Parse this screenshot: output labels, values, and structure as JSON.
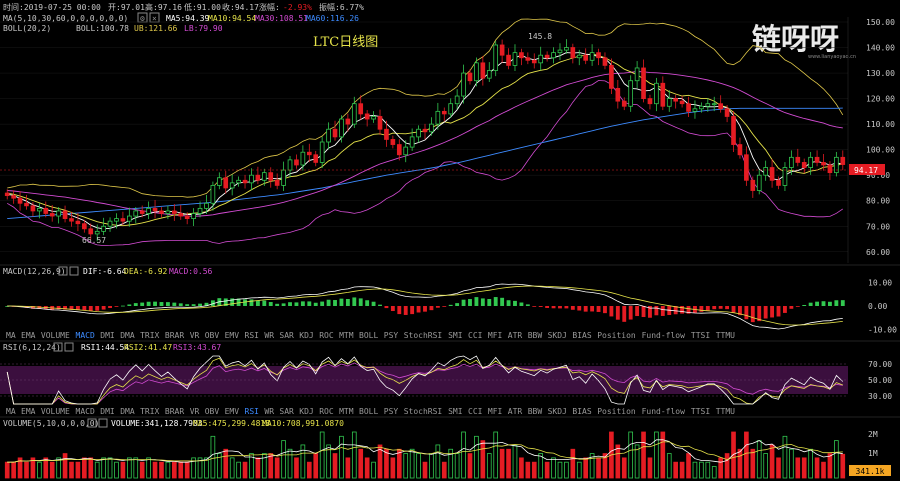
{
  "header": {
    "time_label": "时间:2019-07-25 00:00",
    "open_label": "开:97.01",
    "high_label": "高:97.16",
    "low_label": "低:91.00",
    "close_label": "收:94.17",
    "change_label": "涨幅:",
    "change_value": "-2.93%",
    "amplitude_label": "振幅:6.77%"
  },
  "ma_line": {
    "label": "MA(5,10,30,60,0,0,0,0,0,0)",
    "ma5": "MA5:94.39",
    "ma10": "MA10:94.54",
    "ma30": "MA30:108.51",
    "ma60": "MA60:116.26"
  },
  "boll_line": {
    "label": "BOLL(20,2)",
    "boll": "BOLL:100.78",
    "ub": "UB:121.66",
    "lb": "LB:79.90"
  },
  "macd_line": {
    "label": "MACD(12,26,9)",
    "dif": "DIF:-6.64",
    "dea": "DEA:-6.92",
    "macd": "MACD:0.56"
  },
  "rsi_line": {
    "label": "RSI(6,12,24)",
    "rsi1": "RSI1:44.54",
    "rsi2": "RSI2:41.47",
    "rsi3": "RSI3:43.67"
  },
  "volume_line": {
    "label": "VOLUME(5,10,0,0,0,0)",
    "volume": "VOLUME:341,128.7903",
    "ma5": "MA5:475,299.4818",
    "ma10": "MA10:708,991.0870"
  },
  "chart_title": "LTC日线图",
  "watermark": {
    "logo_text": "链呀呀",
    "url_text": "www.lianyaoyao.cn"
  },
  "indicator_tabs": [
    "MA",
    "EMA",
    "VOLUME",
    "MACD",
    "DMI",
    "DMA",
    "TRIX",
    "BRAR",
    "VR",
    "OBV",
    "EMV",
    "RSI",
    "WR",
    "SAR",
    "KDJ",
    "ROC",
    "MTM",
    "BOLL",
    "PSY",
    "StochRSI",
    "SMI",
    "CCI",
    "MFI",
    "ATR",
    "BBW",
    "SKDJ",
    "BIAS",
    "Position",
    "Fund-flow",
    "TTSI",
    "TTMU"
  ],
  "tabs_row1_active": "MACD",
  "tabs_row2_active": "RSI",
  "colors": {
    "up": "#32c850",
    "down": "#e51c23",
    "ma5": "#ffffff",
    "ma10": "#e6e34a",
    "ma30": "#d24bd2",
    "ma60": "#3d8bff",
    "boll_ub": "#e0c84a",
    "current_price_bg": "#e51c23",
    "volume_price_bg": "#f5a623"
  },
  "chart_data": [
    {
      "type": "candlestick",
      "title": "LTC日线图",
      "y_ticks": [
        60,
        70,
        80,
        90,
        100,
        110,
        120,
        130,
        140,
        150
      ],
      "ylim": [
        56,
        150
      ],
      "annotations": [
        {
          "label": "145.8",
          "value": 145.8
        },
        {
          "label": "66.57",
          "value": 66.57
        }
      ],
      "current_price": "94.17",
      "close": [
        82,
        81,
        79,
        78,
        76,
        77,
        75,
        74,
        76,
        73,
        72,
        71,
        69,
        67,
        68,
        70,
        72,
        73,
        72,
        74,
        76,
        75,
        77,
        76,
        75,
        76,
        75,
        74,
        73,
        75,
        77,
        79,
        86,
        89,
        85,
        87,
        88,
        87,
        90,
        88,
        91,
        88,
        86,
        92,
        96,
        94,
        99,
        98,
        95,
        103,
        108,
        105,
        112,
        110,
        118,
        114,
        112,
        113,
        108,
        104,
        102,
        98,
        101,
        105,
        108,
        107,
        110,
        115,
        114,
        118,
        121,
        130,
        127,
        134,
        128,
        131,
        141,
        137,
        133,
        138,
        136,
        135,
        134,
        137,
        136,
        138,
        139,
        140,
        136,
        137,
        135,
        138,
        136,
        133,
        124,
        119,
        117,
        127,
        132,
        120,
        118,
        126,
        117,
        120,
        119,
        118,
        115,
        116,
        117,
        118,
        118,
        116,
        113,
        102,
        98,
        88,
        84,
        90,
        93,
        88,
        86,
        93,
        97,
        95,
        93,
        97,
        95,
        94,
        91,
        97,
        94.17
      ],
      "ma5": [
        82.6,
        82.0,
        80.9,
        79.8,
        78.4,
        77.6,
        76.6,
        75.9,
        75.8,
        75.2,
        74.2,
        73.2,
        72.2,
        70.4,
        69.4,
        69.0,
        69.2,
        70.0,
        71.0,
        72.2,
        73.4,
        74.0,
        74.8,
        75.6,
        75.8,
        75.8,
        75.8,
        75.2,
        74.6,
        74.6,
        74.8,
        75.6,
        78.0,
        81.2,
        83.2,
        85.2,
        87.0,
        87.2,
        87.4,
        88.0,
        88.8,
        88.8,
        88.6,
        89.0,
        90.6,
        91.2,
        93.4,
        95.8,
        96.4,
        97.8,
        100.6,
        101.8,
        104.6,
        107.6,
        110.6,
        111.8,
        113.2,
        113.4,
        113.0,
        110.2,
        107.8,
        105.0,
        102.6,
        102.0,
        102.8,
        103.8,
        106.2,
        109.0,
        110.8,
        112.8,
        115.6,
        119.6,
        122.0,
        126.0,
        128.0,
        130.0,
        132.2,
        134.2,
        134.0,
        136.0,
        137.0,
        135.8,
        135.2,
        136.0,
        135.6,
        136.0,
        136.8,
        138.0,
        137.8,
        138.0,
        137.4,
        137.2,
        136.4,
        135.8,
        133.2,
        130.0,
        125.8,
        124.0,
        123.8,
        123.0,
        123.2,
        124.6,
        122.6,
        120.2,
        120.0,
        120.0,
        117.8,
        117.6,
        117.0,
        116.8,
        116.8,
        117.0,
        116.4,
        113.4,
        109.4,
        103.4,
        97.0,
        92.4,
        90.6,
        88.6,
        88.2,
        90.0,
        91.4,
        91.8,
        92.8,
        95.0,
        95.4,
        94.8,
        94.0,
        94.8,
        94.39
      ],
      "ma10": [
        83.0,
        82.5,
        81.8,
        81.0,
        80.1,
        79.2,
        78.3,
        77.5,
        76.9,
        76.3,
        75.4,
        74.4,
        73.6,
        72.7,
        71.8,
        71.2,
        70.7,
        70.4,
        70.2,
        70.5,
        70.8,
        71.3,
        71.9,
        72.6,
        73.2,
        73.8,
        74.4,
        74.6,
        74.8,
        75.1,
        75.3,
        75.7,
        76.6,
        78.0,
        79.0,
        80.4,
        81.6,
        82.8,
        84.3,
        85.6,
        86.8,
        87.6,
        88.0,
        88.6,
        89.4,
        89.7,
        90.5,
        91.4,
        92.0,
        93.4,
        95.6,
        96.6,
        99.0,
        101.1,
        103.0,
        103.6,
        105.0,
        106.0,
        106.2,
        105.6,
        106.5,
        106.3,
        106.2,
        106.6,
        107.0,
        107.3,
        108.6,
        109.8,
        110.9,
        110.4,
        111.5,
        112.5,
        114.1,
        116.4,
        117.7,
        119.8,
        121.9,
        123.9,
        124.9,
        126.4,
        128.3,
        129.8,
        130.5,
        131.1,
        131.5,
        133.1,
        134.3,
        135.1,
        135.9,
        136.6,
        137.0,
        137.6,
        136.8,
        136.0,
        134.7,
        133.3,
        131.5,
        130.5,
        129.3,
        127.8,
        126.0,
        125.0,
        124.2,
        122.7,
        121.8,
        121.0,
        121.3,
        120.6,
        120.0,
        120.0,
        119.0,
        117.3,
        116.6,
        114.6,
        112.5,
        109.6,
        106.1,
        102.9,
        99.9,
        96.1,
        92.7,
        91.2,
        91.9,
        91.1,
        90.7,
        91.6,
        92.0,
        93.1,
        93.4,
        93.8,
        94.54
      ],
      "ma30": [
        84.0,
        83.8,
        83.5,
        83.2,
        82.9,
        82.6,
        82.3,
        82.0,
        81.7,
        81.4,
        81.0,
        80.6,
        80.2,
        79.8,
        79.3,
        78.9,
        78.4,
        77.9,
        77.4,
        76.9,
        76.5,
        76.1,
        75.7,
        75.3,
        75.0,
        74.7,
        74.4,
        74.2,
        74.0,
        73.9,
        74.0,
        74.2,
        74.5,
        75.0,
        75.4,
        75.8,
        76.2,
        76.6,
        77.0,
        77.4,
        77.8,
        78.3,
        78.8,
        79.4,
        80.1,
        80.8,
        81.6,
        82.4,
        83.2,
        84.1,
        85.1,
        86.1,
        87.2,
        88.4,
        89.6,
        90.9,
        92.1,
        93.3,
        94.4,
        95.2,
        96.0,
        96.8,
        97.5,
        98.3,
        99.1,
        99.9,
        100.8,
        101.8,
        102.8,
        103.9,
        105.0,
        106.3,
        107.6,
        109.0,
        110.2,
        111.4,
        112.9,
        114.2,
        115.4,
        116.7,
        117.9,
        119.0,
        120.1,
        121.2,
        122.3,
        123.4,
        124.4,
        125.4,
        126.1,
        126.8,
        127.5,
        128.3,
        128.9,
        129.4,
        129.7,
        129.9,
        130.0,
        130.3,
        130.6,
        130.5,
        130.2,
        130.1,
        129.9,
        129.7,
        129.4,
        129.1,
        128.7,
        128.3,
        127.8,
        127.3,
        126.7,
        126.0,
        125.2,
        124.3,
        123.2,
        121.9,
        120.6,
        119.3,
        118.1,
        116.9,
        115.6,
        114.5,
        113.7,
        112.9,
        112.2,
        111.6,
        111.0,
        110.4,
        109.5,
        108.9,
        108.51
      ],
      "ma60": [
        73.0,
        73.2,
        73.4,
        73.6,
        73.8,
        74.0,
        74.2,
        74.4,
        74.6,
        74.8,
        75.0,
        75.2,
        75.4,
        75.6,
        75.8,
        76.0,
        76.2,
        76.4,
        76.6,
        76.8,
        77.0,
        77.2,
        77.4,
        77.6,
        77.8,
        78.0,
        78.2,
        78.4,
        78.6,
        78.8,
        79.0,
        79.2,
        79.4,
        79.6,
        79.9,
        80.2,
        80.5,
        80.8,
        81.1,
        81.4,
        81.7,
        82.0,
        82.3,
        82.6,
        83.0,
        83.4,
        83.8,
        84.2,
        84.6,
        85.0,
        85.5,
        86.0,
        86.5,
        87.0,
        87.5,
        88.0,
        88.5,
        89.0,
        89.5,
        90.0,
        90.4,
        90.8,
        91.2,
        91.6,
        92.0,
        92.4,
        92.8,
        93.3,
        93.8,
        94.3,
        94.8,
        95.4,
        96.0,
        96.6,
        97.2,
        97.8,
        98.4,
        99.0,
        99.6,
        100.2,
        100.8,
        101.4,
        102.0,
        102.6,
        103.2,
        103.8,
        104.4,
        105.0,
        105.6,
        106.2,
        106.8,
        107.4,
        108.0,
        108.6,
        109.2,
        109.7,
        110.2,
        110.7,
        111.2,
        111.7,
        112.1,
        112.5,
        112.9,
        113.3,
        113.7,
        114.1,
        114.5,
        114.8,
        115.1,
        115.4,
        115.6,
        115.8,
        116.0,
        116.1,
        116.2,
        116.2,
        116.2,
        116.2,
        116.2,
        116.2,
        116.2,
        116.2,
        116.2,
        116.2,
        116.2,
        116.2,
        116.2,
        116.2,
        116.2,
        116.2,
        116.26
      ]
    },
    {
      "type": "bar",
      "title": "MACD(12,26,9)",
      "y_ticks": [
        -10,
        0,
        10
      ],
      "ylim": [
        -12,
        12
      ]
    },
    {
      "type": "line",
      "title": "RSI(6,12,24)",
      "y_ticks": [
        30,
        50,
        70
      ],
      "ylim": [
        20,
        80
      ]
    },
    {
      "type": "bar",
      "title": "VOLUME(5,10,0,0,0,0)",
      "y_ticks": [
        "1M",
        "2M"
      ],
      "current_value_label": "341.1k"
    }
  ]
}
